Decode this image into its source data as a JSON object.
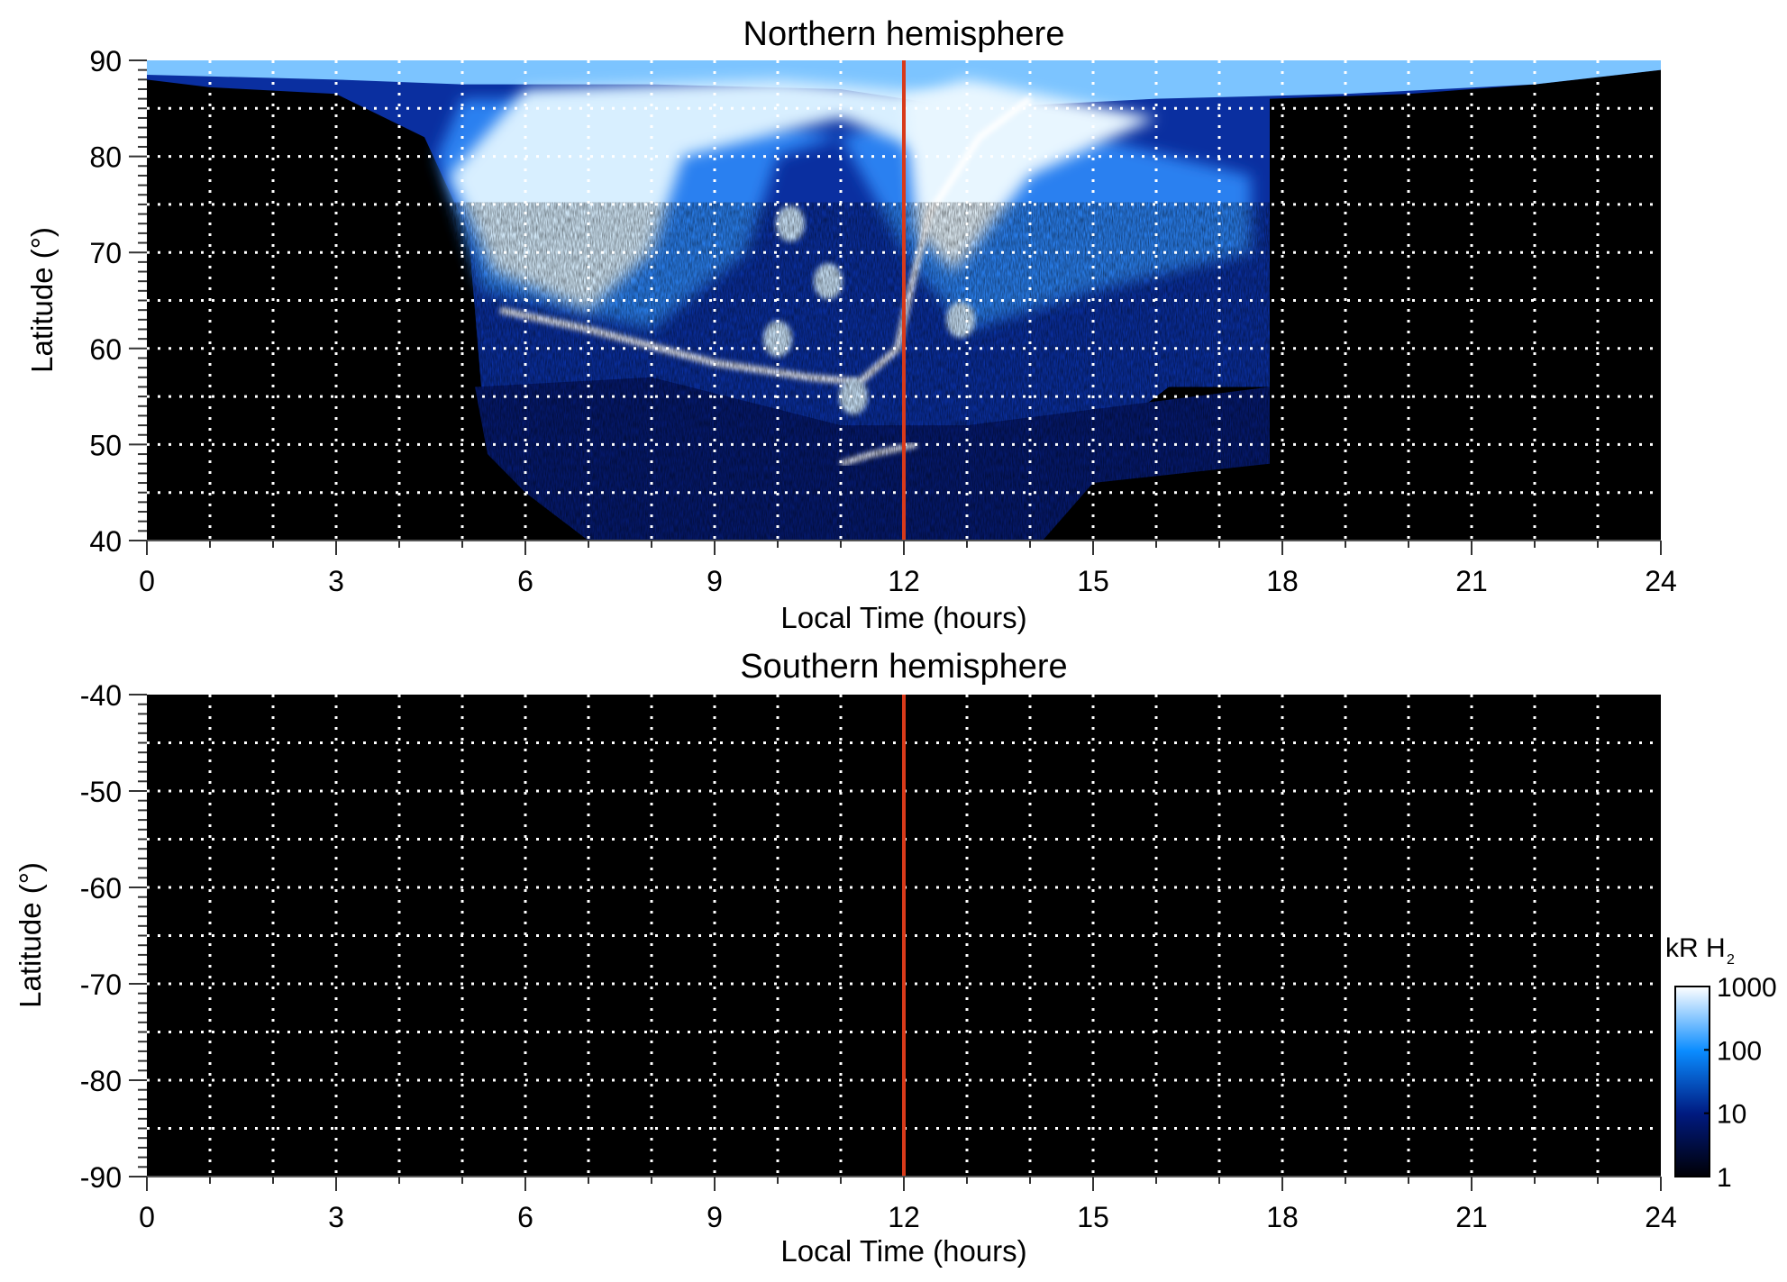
{
  "chart_data": [
    {
      "type": "heatmap",
      "title": "Northern hemisphere",
      "xlabel": "Local Time (hours)",
      "ylabel": "Latitude (°)",
      "xlim": [
        0,
        24
      ],
      "ylim": [
        40,
        90
      ],
      "xticks": [
        "0",
        "3",
        "6",
        "9",
        "12",
        "15",
        "18",
        "21",
        "24"
      ],
      "yticks": [
        "40",
        "50",
        "60",
        "70",
        "80",
        "90"
      ],
      "grid": true,
      "marker_line_lt": 12,
      "marker_color": "#d83a1a"
    },
    {
      "type": "heatmap",
      "title": "Southern hemisphere",
      "xlabel": "Local Time (hours)",
      "ylabel": "Latitude (°)",
      "xlim": [
        0,
        24
      ],
      "ylim": [
        -90,
        -40
      ],
      "xticks": [
        "0",
        "3",
        "6",
        "9",
        "12",
        "15",
        "18",
        "21",
        "24"
      ],
      "yticks": [
        "-90",
        "-80",
        "-70",
        "-60",
        "-50",
        "-40"
      ],
      "grid": true,
      "marker_line_lt": 12,
      "marker_color": "#d83a1a"
    }
  ],
  "colorbar": {
    "label": "kR H",
    "label_sub": "2",
    "scale": "log",
    "ticks": [
      "1",
      "10",
      "100",
      "1000"
    ],
    "range": [
      1,
      1000
    ],
    "colors": [
      "#000005",
      "#001a80",
      "#0a8cff",
      "#ffffff"
    ]
  }
}
